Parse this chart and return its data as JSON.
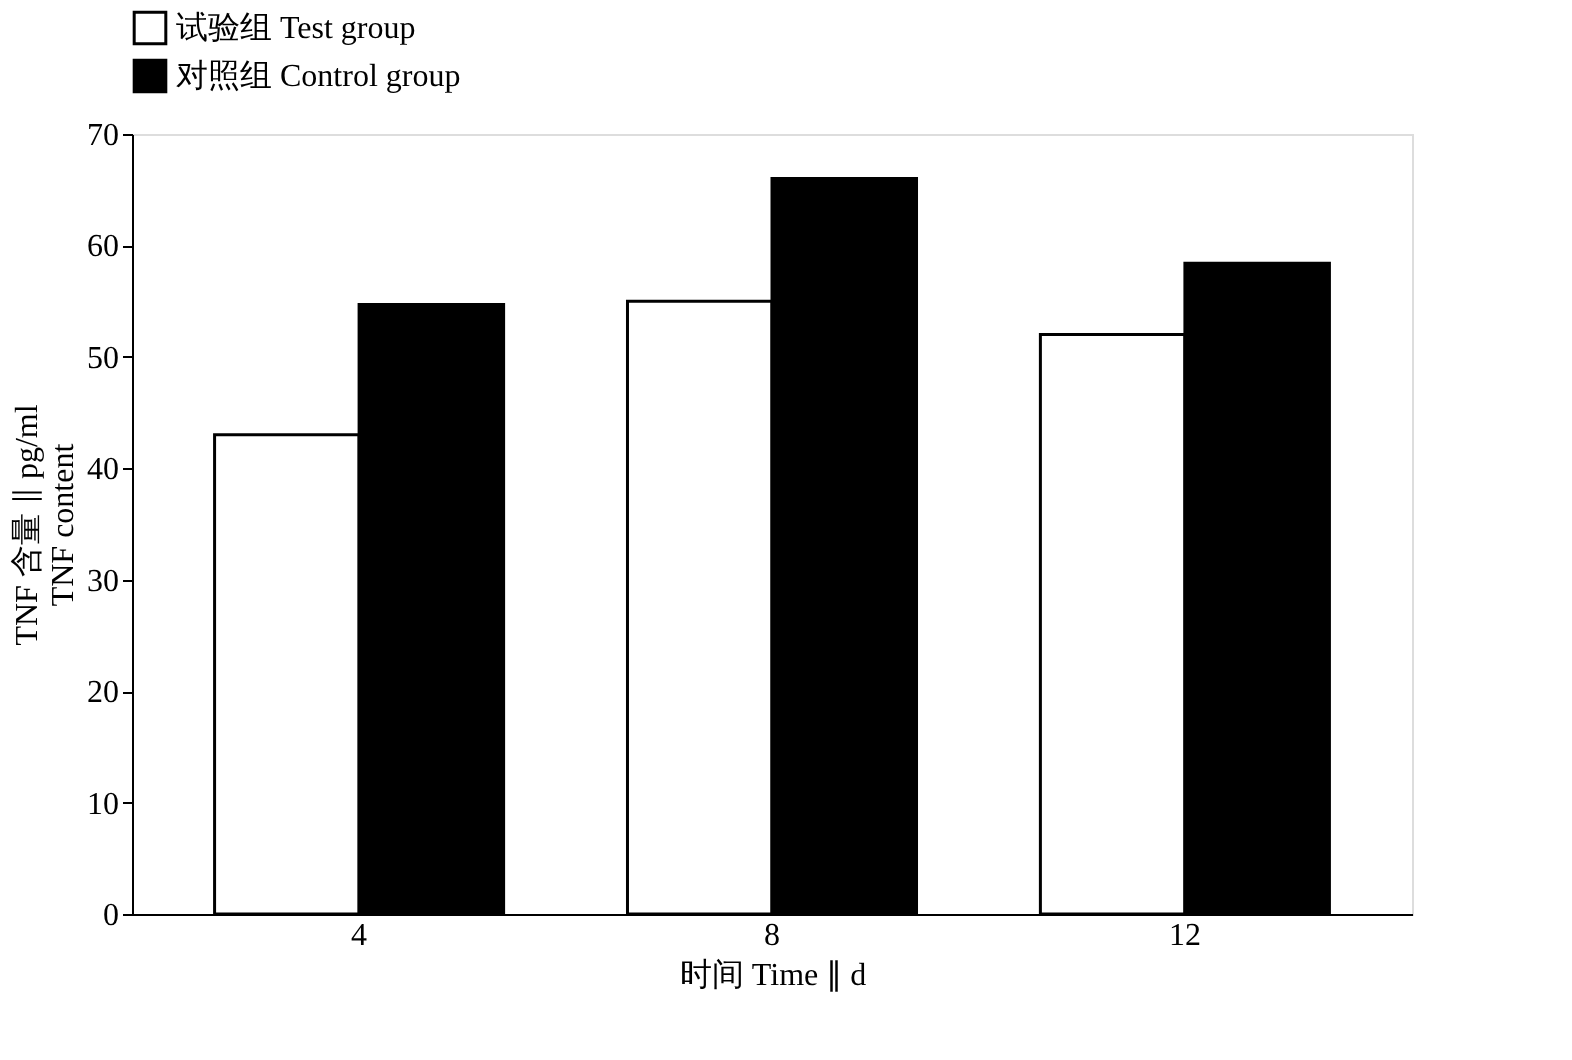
{
  "chart_data": {
    "type": "bar",
    "xlabel": "时间 Time ∥ d",
    "ylabel": [
      "TNF 含量 ∥ pg/ml",
      "TNF content"
    ],
    "categories": [
      "4",
      "8",
      "12"
    ],
    "series": [
      {
        "name": "试验组  Test group",
        "color": "#ffffff",
        "values": [
          43,
          55,
          52
        ]
      },
      {
        "name": "对照组  Control group",
        "color": "#000000",
        "values": [
          54.7,
          66,
          58.4
        ]
      }
    ],
    "ylim": [
      0,
      70
    ],
    "yticks": [
      0,
      10,
      20,
      30,
      40,
      50,
      60,
      70
    ],
    "grid": false,
    "legend": "top"
  }
}
